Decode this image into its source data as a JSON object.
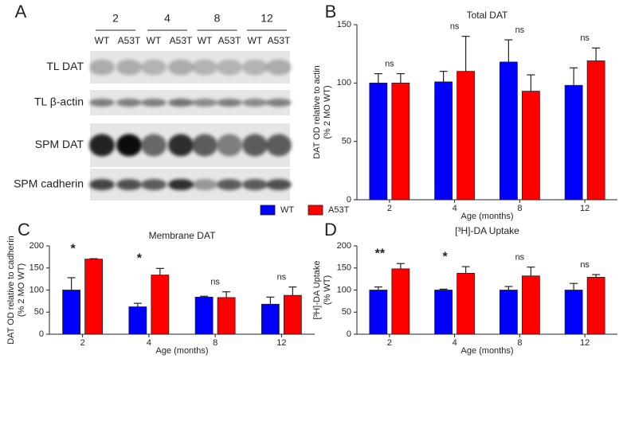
{
  "blot": {
    "panel": "A",
    "ages": [
      "2",
      "4",
      "8",
      "12"
    ],
    "lanes": [
      "WT",
      "A53T",
      "WT",
      "A53T",
      "WT",
      "A53T",
      "WT",
      "A53T"
    ],
    "rows": [
      "TL DAT",
      "TL β-actin",
      "SPM DAT",
      "SPM cadherin"
    ]
  },
  "chart_data": [
    {
      "type": "bar",
      "panel": "B",
      "title": "Total DAT",
      "ylabel": [
        "DAT OD relative to actin",
        "(% 2 MO WT)"
      ],
      "xlabel": "Age (months)",
      "categories": [
        "2",
        "4",
        "8",
        "12"
      ],
      "series": [
        {
          "name": "WT",
          "color": "#0000ff",
          "values": [
            100,
            101,
            118,
            98
          ],
          "errors": [
            8,
            9,
            19,
            15
          ]
        },
        {
          "name": "A53T",
          "color": "#ff0000",
          "values": [
            100,
            110,
            93,
            119
          ],
          "errors": [
            8,
            30,
            14,
            11
          ]
        }
      ],
      "annotations": [
        "ns",
        "ns",
        "ns",
        "ns"
      ],
      "ylim": [
        0,
        150
      ],
      "yticks": [
        0,
        50,
        100,
        150
      ],
      "legend": "below"
    },
    {
      "type": "bar",
      "panel": "C",
      "title": "Membrane DAT",
      "ylabel": [
        "DAT OD relative to cadherin",
        "(% 2 MO WT)"
      ],
      "xlabel": "Age (months)",
      "categories": [
        "2",
        "4",
        "8",
        "12"
      ],
      "series": [
        {
          "name": "WT",
          "color": "#0000ff",
          "values": [
            100,
            62,
            84,
            68
          ],
          "errors": [
            28,
            8,
            2,
            16
          ]
        },
        {
          "name": "A53T",
          "color": "#ff0000",
          "values": [
            170,
            134,
            83,
            88
          ],
          "errors": [
            1,
            15,
            13,
            19
          ]
        }
      ],
      "annotations": [
        "*",
        "*",
        "ns",
        "ns"
      ],
      "ylim": [
        0,
        200
      ],
      "yticks": [
        0,
        50,
        100,
        150,
        200
      ]
    },
    {
      "type": "bar",
      "panel": "D",
      "title": "[³H]-DA Uptake",
      "ylabel": [
        "[³H]-DA Uptake",
        "(% WT)"
      ],
      "xlabel": "Age (months)",
      "categories": [
        "2",
        "4",
        "8",
        "12"
      ],
      "series": [
        {
          "name": "WT",
          "color": "#0000ff",
          "values": [
            100,
            100,
            100,
            100
          ],
          "errors": [
            7,
            2,
            8,
            15
          ]
        },
        {
          "name": "A53T",
          "color": "#ff0000",
          "values": [
            148,
            138,
            132,
            129
          ],
          "errors": [
            12,
            15,
            20,
            6
          ]
        }
      ],
      "annotations": [
        "**",
        "*",
        "ns",
        "ns"
      ],
      "ylim": [
        0,
        200
      ],
      "yticks": [
        0,
        50,
        100,
        150,
        200
      ]
    }
  ]
}
